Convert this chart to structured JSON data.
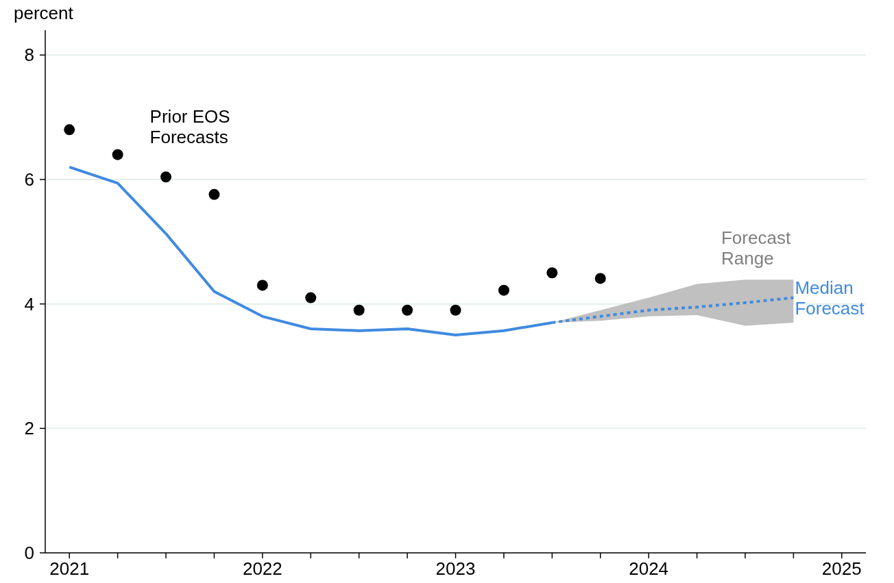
{
  "chart_data": {
    "type": "line",
    "ylabel": "percent",
    "xlim": [
      2020.875,
      2025.125
    ],
    "xticks": [
      {
        "value": 2021,
        "label": "2021"
      },
      {
        "value": 2021.25,
        "label": null
      },
      {
        "value": 2021.5,
        "label": null
      },
      {
        "value": 2021.75,
        "label": null
      },
      {
        "value": 2022,
        "label": "2022"
      },
      {
        "value": 2022.25,
        "label": null
      },
      {
        "value": 2022.5,
        "label": null
      },
      {
        "value": 2022.75,
        "label": null
      },
      {
        "value": 2023,
        "label": "2023"
      },
      {
        "value": 2023.25,
        "label": null
      },
      {
        "value": 2023.5,
        "label": null
      },
      {
        "value": 2023.75,
        "label": null
      },
      {
        "value": 2024,
        "label": "2024"
      },
      {
        "value": 2024.25,
        "label": null
      },
      {
        "value": 2024.5,
        "label": null
      },
      {
        "value": 2024.75,
        "label": null
      },
      {
        "value": 2025,
        "label": "2025"
      }
    ],
    "ylim": [
      0,
      8.4
    ],
    "yticks": [
      0,
      2,
      4,
      6,
      8
    ],
    "grid": "y",
    "legend": false,
    "series": [
      {
        "type": "scatter",
        "color": "#000000",
        "marker": "circle",
        "x": [
          2021,
          2021.25,
          2021.5,
          2021.75,
          2022,
          2022.25,
          2022.5,
          2022.75,
          2023,
          2023.25,
          2023.5,
          2023.75
        ],
        "values": [
          6.8,
          6.4,
          6.04,
          5.76,
          4.3,
          4.1,
          3.9,
          3.9,
          3.9,
          4.22,
          4.5,
          4.41
        ]
      },
      {
        "color": "#3f8ae0",
        "line_style": "solid",
        "x": [
          2021,
          2021.25,
          2021.5,
          2021.75,
          2022,
          2022.25,
          2022.5,
          2022.75,
          2023,
          2023.25,
          2023.5
        ],
        "values": [
          6.2,
          5.94,
          5.13,
          4.2,
          3.8,
          3.6,
          3.57,
          3.6,
          3.5,
          3.57,
          3.7
        ]
      },
      {
        "type": "line",
        "name": "Median Forecast",
        "color": "#3f8ae0",
        "line_style": "dotted",
        "x": [
          2023.5,
          2023.75,
          2024,
          2024.25,
          2024.5,
          2024.75
        ],
        "values": [
          3.7,
          3.8,
          3.9,
          3.95,
          4.02,
          4.1
        ],
        "lower": [
          3.7,
          3.73,
          3.8,
          3.82,
          3.65,
          3.7
        ],
        "upper": [
          3.7,
          3.9,
          4.1,
          4.32,
          4.39,
          4.39
        ]
      }
    ],
    "annotations": [
      {
        "text": "Prior EOS Forecasts",
        "x": 2021.25,
        "y": 6.4
      },
      {
        "text": "Forecast Range",
        "x": 2024.5,
        "y": 4.39
      }
    ]
  }
}
